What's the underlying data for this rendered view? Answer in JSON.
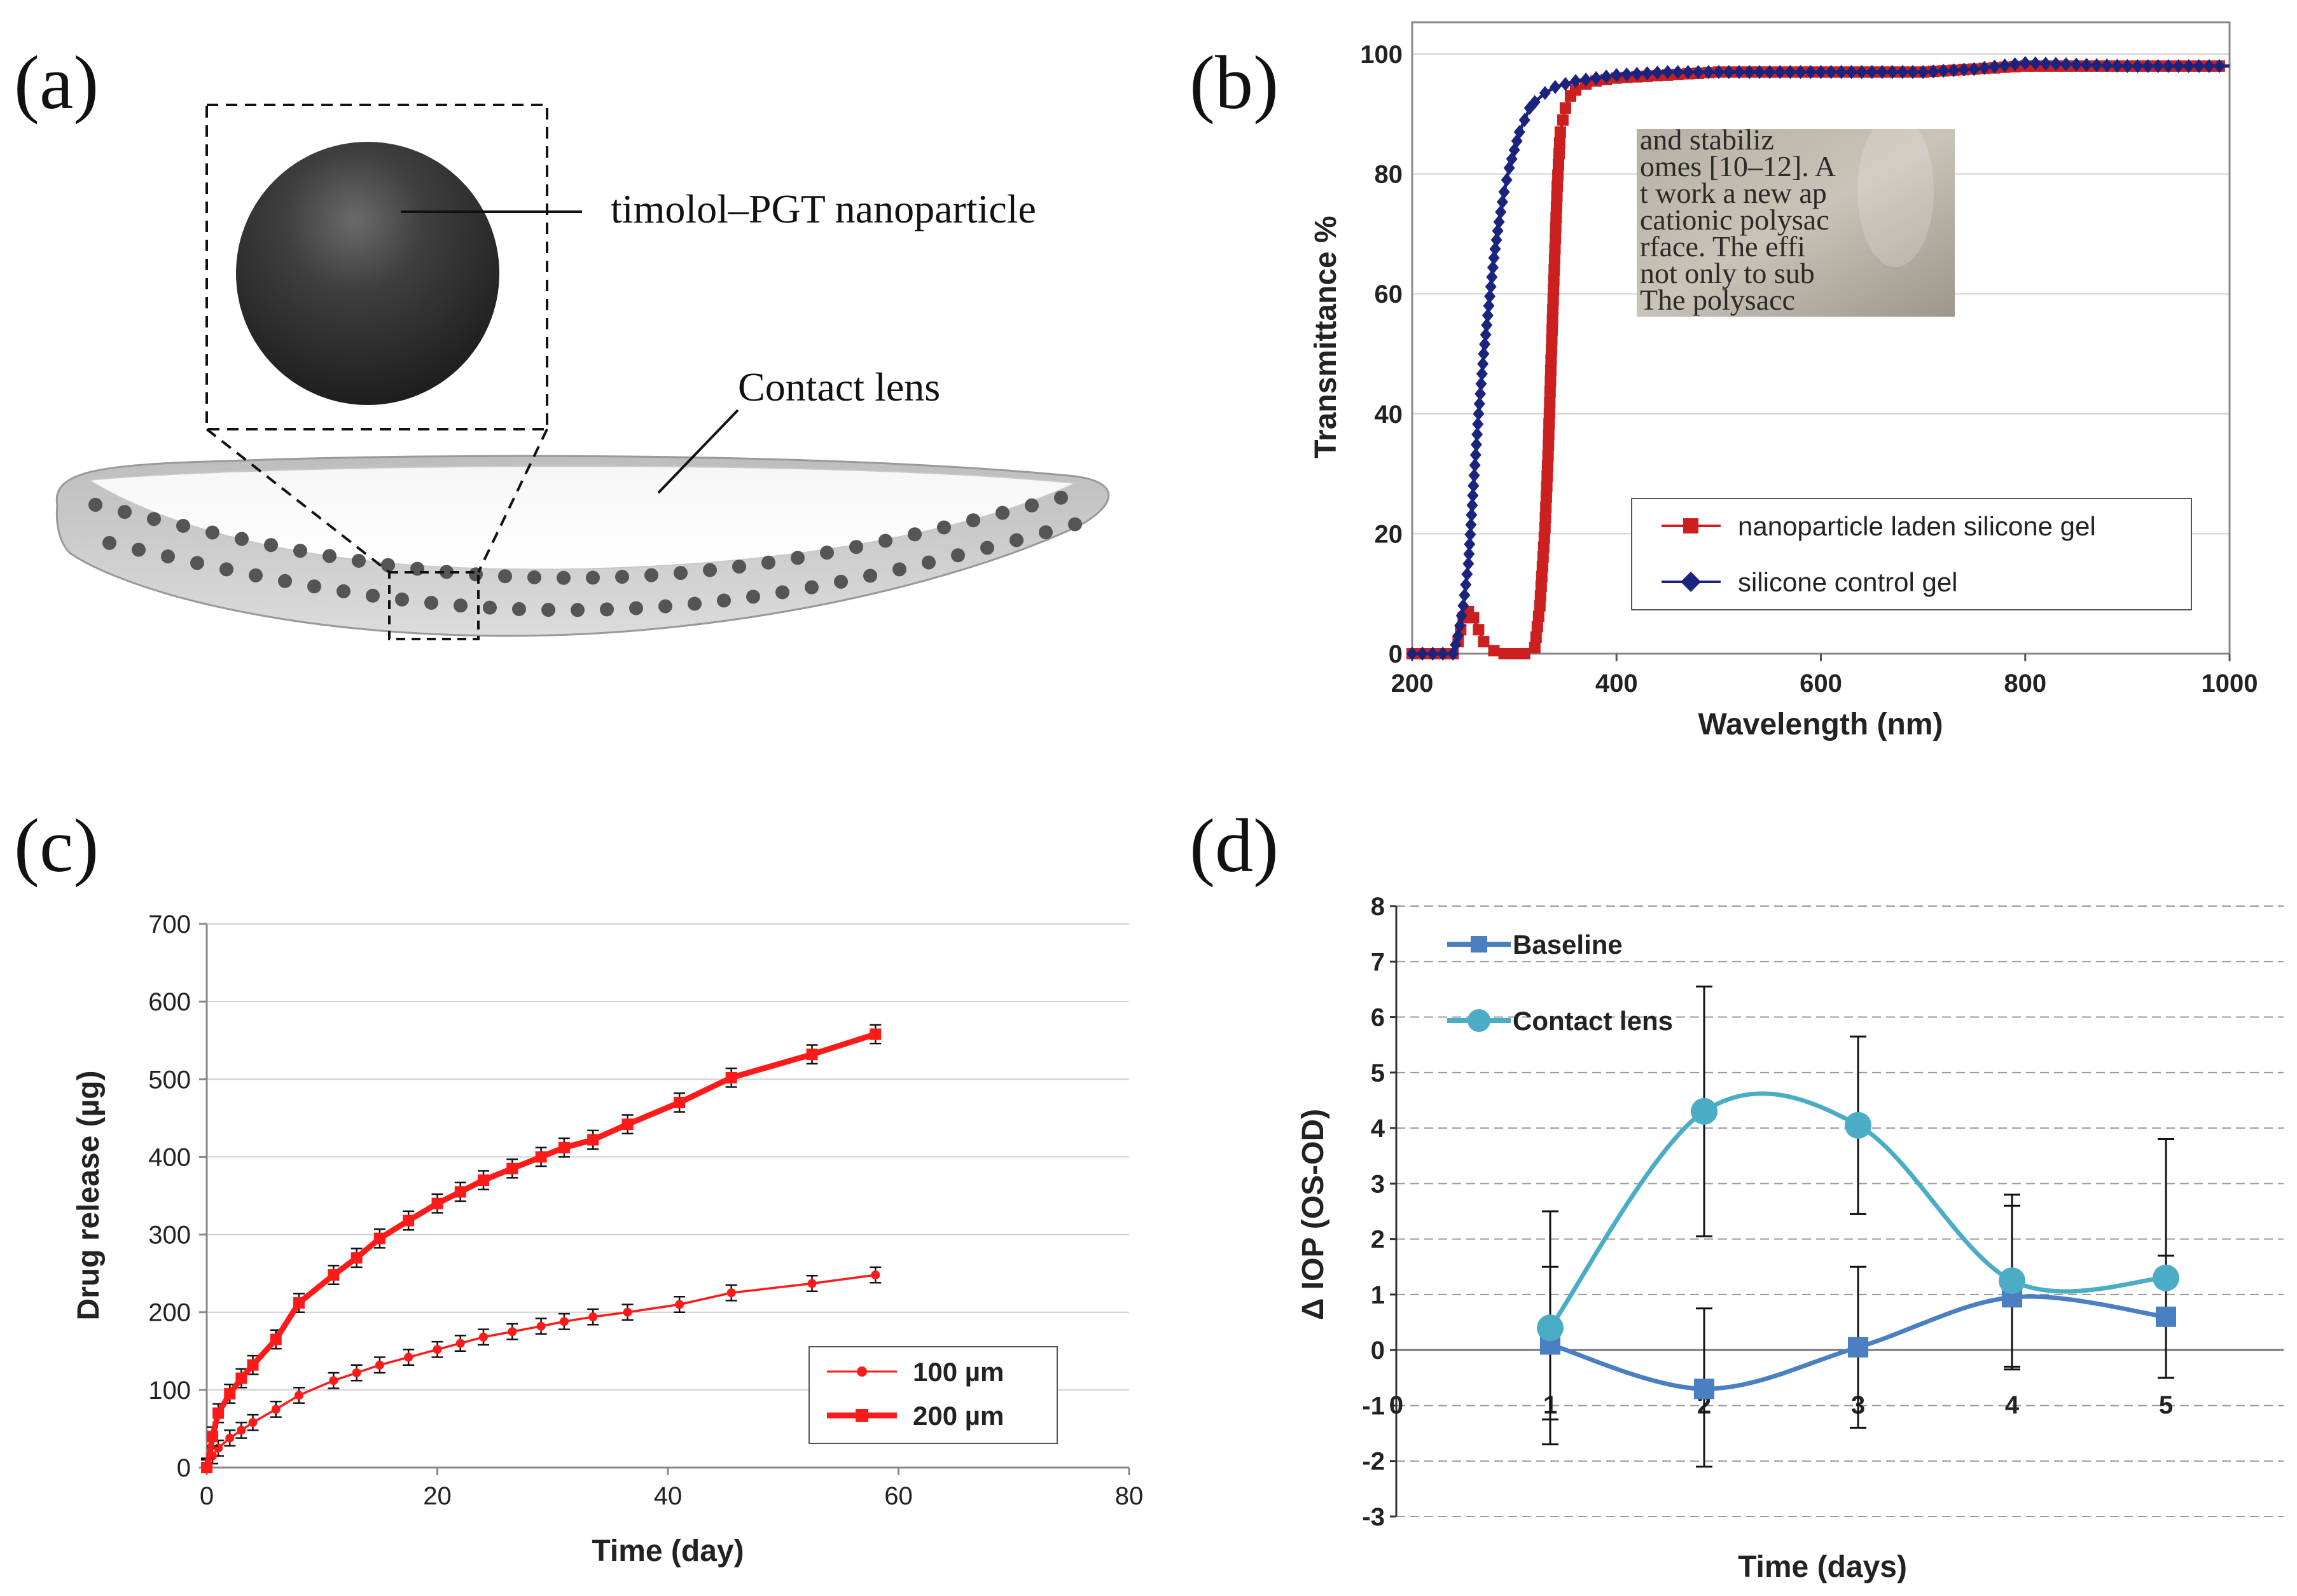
{
  "panels": {
    "a": {
      "label": "(a)",
      "nanoparticle_label": "timolol–PGT nanoparticle",
      "lens_label": "Contact lens"
    },
    "b": {
      "label": "(b)"
    },
    "c": {
      "label": "(c)"
    },
    "d": {
      "label": "(d)"
    }
  },
  "inset": {
    "text_lines": [
      "and stabiliz",
      "omes [10–12]. A",
      "t work a new ap",
      "cationic polysac",
      "rface. The effi",
      "not only to sub",
      "The polysacc"
    ]
  },
  "chart_data": [
    {
      "panel": "b",
      "type": "line",
      "xlabel": "Wavelength (nm)",
      "ylabel": "Transmittance %",
      "xlim": [
        200,
        1000
      ],
      "ylim": [
        0,
        100
      ],
      "xticks": [
        "200",
        "400",
        "600",
        "800",
        "1000"
      ],
      "yticks": [
        "0",
        "20",
        "40",
        "60",
        "80",
        "100"
      ],
      "grid": "horizontal",
      "legend_position": "lower-right",
      "series": [
        {
          "name": "nanoparticle laden silicone gel",
          "color": "#cc1f1f",
          "marker": "square",
          "x": [
            200,
            230,
            240,
            245,
            250,
            255,
            260,
            265,
            270,
            280,
            290,
            300,
            310,
            320,
            325,
            330,
            333,
            336,
            339,
            342,
            345,
            350,
            355,
            360,
            370,
            380,
            400,
            450,
            500,
            550,
            600,
            650,
            700,
            750,
            800,
            850,
            900,
            950,
            1000
          ],
          "y": [
            0,
            0,
            0,
            2,
            6,
            7,
            6,
            4,
            2,
            0.5,
            0,
            0,
            0,
            1,
            8,
            21,
            33,
            49,
            64,
            78,
            87,
            91,
            93,
            94,
            95,
            95.5,
            96,
            96.5,
            97,
            97,
            97,
            97,
            97,
            97.5,
            98,
            98,
            98,
            98,
            98
          ]
        },
        {
          "name": "silicone control gel",
          "color": "#1a237e",
          "marker": "diamond",
          "x": [
            200,
            230,
            240,
            245,
            250,
            255,
            260,
            265,
            270,
            275,
            280,
            285,
            290,
            295,
            300,
            305,
            310,
            315,
            320,
            330,
            340,
            350,
            360,
            380,
            400,
            450,
            500,
            600,
            700,
            750,
            800,
            900,
            1000
          ],
          "y": [
            0,
            0,
            0,
            3,
            8,
            15,
            28,
            40,
            50,
            58,
            66,
            72,
            77,
            81,
            84,
            87,
            89,
            91,
            92,
            93.5,
            94.5,
            95,
            95.5,
            96,
            96.5,
            97,
            97,
            97,
            97,
            97.5,
            98.5,
            98,
            98
          ]
        }
      ]
    },
    {
      "panel": "c",
      "type": "line",
      "xlabel": "Time (day)",
      "ylabel": "Drug release (µg)",
      "xlim": [
        0,
        80
      ],
      "ylim": [
        0,
        700
      ],
      "xticks": [
        "0",
        "20",
        "40",
        "60",
        "80"
      ],
      "yticks": [
        "0",
        "100",
        "200",
        "300",
        "400",
        "500",
        "600",
        "700"
      ],
      "grid": "horizontal",
      "legend_position": "lower-right",
      "series": [
        {
          "name": "100 µm",
          "color": "#ff1a1a",
          "line_width": "thin",
          "x": [
            0,
            0.5,
            1,
            2,
            3,
            4,
            6,
            8,
            11,
            13,
            15,
            17.5,
            20,
            22,
            24,
            26.5,
            29,
            31,
            33.5,
            36.5,
            41,
            45.5,
            52.5,
            58
          ],
          "y": [
            0,
            15,
            25,
            38,
            48,
            58,
            75,
            93,
            112,
            122,
            132,
            142,
            152,
            160,
            168,
            175,
            182,
            188,
            194,
            200,
            210,
            225,
            237,
            248
          ],
          "err": 10
        },
        {
          "name": "200 µm",
          "color": "#ff1a1a",
          "line_width": "thick",
          "x": [
            0,
            0.5,
            1,
            2,
            3,
            4,
            6,
            8,
            11,
            13,
            15,
            17.5,
            20,
            22,
            24,
            26.5,
            29,
            31,
            33.5,
            36.5,
            41,
            45.5,
            52.5,
            58
          ],
          "y": [
            0,
            40,
            70,
            95,
            115,
            132,
            165,
            212,
            248,
            270,
            295,
            318,
            340,
            355,
            370,
            385,
            400,
            412,
            422,
            442,
            470,
            502,
            532,
            558
          ],
          "err": 12
        }
      ]
    },
    {
      "panel": "d",
      "type": "line",
      "xlabel": "Time (days)",
      "ylabel": "Δ IOP (OS-OD)",
      "xlim": [
        0,
        5
      ],
      "ylim": [
        -3,
        8
      ],
      "xticks": [
        "0",
        "1",
        "2",
        "3",
        "4",
        "5"
      ],
      "yticks": [
        "-3",
        "-2",
        "-1",
        "0",
        "1",
        "2",
        "3",
        "4",
        "5",
        "6",
        "7",
        "8"
      ],
      "grid": "horizontal dashed",
      "legend_position": "top-left",
      "series": [
        {
          "name": "Baseline",
          "color": "#4a7fc1",
          "marker": "square",
          "x": [
            1,
            2,
            3,
            4,
            5
          ],
          "y": [
            0.1,
            -0.7,
            0.05,
            0.95,
            0.6
          ],
          "err_low": [
            1.8,
            1.4,
            1.45,
            1.3,
            1.1
          ],
          "err_high": [
            1.4,
            1.45,
            1.45,
            1.65,
            1.1
          ]
        },
        {
          "name": "Contact lens",
          "color": "#4bacc6",
          "marker": "circle",
          "x": [
            1,
            2,
            3,
            4,
            5
          ],
          "y": [
            0.4,
            4.3,
            4.05,
            1.25,
            1.3
          ],
          "err_low": [
            1.65,
            2.25,
            1.6,
            1.55,
            1.8
          ],
          "err_high": [
            2.1,
            2.25,
            1.6,
            1.55,
            2.5
          ]
        }
      ]
    }
  ]
}
